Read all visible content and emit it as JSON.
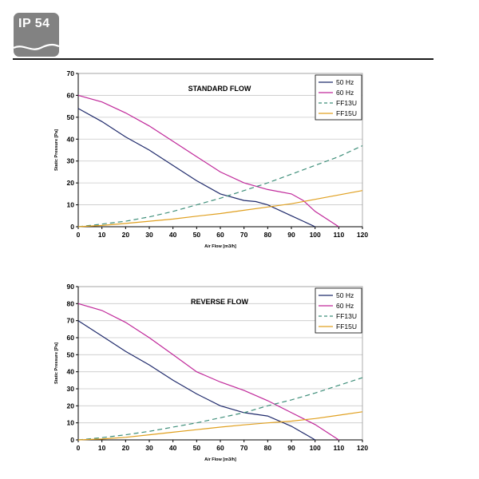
{
  "badge": {
    "text": "IP 54"
  },
  "colors": {
    "hz50": "#1f2a6b",
    "hz60": "#c0289a",
    "ff13u": "#3f8f7a",
    "ff15u": "#e0a020",
    "badge": "#828282"
  },
  "chart_data": [
    {
      "type": "line",
      "title": "STANDARD FLOW",
      "xlabel": "Air Flow [m3/h]",
      "ylabel": "Static Pressure [Pa]",
      "xlim": [
        0,
        120
      ],
      "ylim": [
        0,
        70
      ],
      "xticks": [
        0,
        10,
        20,
        30,
        40,
        50,
        60,
        70,
        80,
        90,
        100,
        110,
        120
      ],
      "yticks": [
        0,
        10,
        20,
        30,
        40,
        50,
        60,
        70
      ],
      "grid": "horizontal",
      "legend": "top-right",
      "series": [
        {
          "name": "50 Hz",
          "color": "#1f2a6b",
          "dash": "solid",
          "x": [
            0,
            10,
            20,
            30,
            40,
            50,
            60,
            70,
            75,
            80,
            90,
            100
          ],
          "y": [
            54,
            48,
            41,
            35,
            28,
            21,
            15,
            12,
            11.5,
            10,
            5,
            0
          ]
        },
        {
          "name": "60 Hz",
          "color": "#c0289a",
          "dash": "solid",
          "x": [
            0,
            10,
            20,
            30,
            40,
            50,
            60,
            70,
            80,
            90,
            95,
            100,
            110
          ],
          "y": [
            60,
            57,
            52,
            46,
            39,
            32,
            25,
            20,
            17,
            15,
            12,
            7,
            0
          ]
        },
        {
          "name": "FF13U",
          "color": "#3f8f7a",
          "dash": "dashed",
          "x": [
            0,
            10,
            20,
            30,
            40,
            50,
            60,
            70,
            80,
            90,
            100,
            110,
            120
          ],
          "y": [
            0,
            1.2,
            2.5,
            4.5,
            7,
            10,
            13,
            16.5,
            20,
            24,
            28,
            32,
            37
          ]
        },
        {
          "name": "FF15U",
          "color": "#e0a020",
          "dash": "solid",
          "x": [
            0,
            10,
            20,
            30,
            40,
            50,
            60,
            70,
            80,
            90,
            100,
            110,
            120
          ],
          "y": [
            0,
            0.6,
            1.5,
            2.5,
            3.5,
            4.8,
            6,
            7.5,
            9,
            10.5,
            12.5,
            14.5,
            16.5
          ]
        }
      ]
    },
    {
      "type": "line",
      "title": "REVERSE FLOW",
      "xlabel": "Air Flow [m3/h]",
      "ylabel": "Static Pressure [Pa]",
      "xlim": [
        0,
        120
      ],
      "ylim": [
        0,
        90
      ],
      "xticks": [
        0,
        10,
        20,
        30,
        40,
        50,
        60,
        70,
        80,
        90,
        100,
        110,
        120
      ],
      "yticks": [
        0,
        10,
        20,
        30,
        40,
        50,
        60,
        70,
        80,
        90
      ],
      "grid": "horizontal",
      "legend": "top-right",
      "series": [
        {
          "name": "50 Hz",
          "color": "#1f2a6b",
          "dash": "solid",
          "x": [
            0,
            10,
            20,
            30,
            40,
            50,
            60,
            70,
            80,
            90,
            100
          ],
          "y": [
            70,
            61,
            52,
            44,
            35,
            27,
            20,
            16,
            14,
            8,
            0
          ]
        },
        {
          "name": "60 Hz",
          "color": "#c0289a",
          "dash": "solid",
          "x": [
            0,
            10,
            20,
            30,
            40,
            50,
            60,
            70,
            80,
            90,
            100,
            110
          ],
          "y": [
            80,
            76,
            69,
            60,
            50,
            40,
            34,
            29,
            23,
            16,
            9,
            0
          ]
        },
        {
          "name": "FF13U",
          "color": "#3f8f7a",
          "dash": "dashed",
          "x": [
            0,
            10,
            20,
            30,
            40,
            50,
            60,
            70,
            80,
            90,
            100,
            110,
            120
          ],
          "y": [
            0,
            1.3,
            3,
            5,
            7.5,
            10,
            13,
            16,
            20,
            23.5,
            27.5,
            32,
            36.5
          ]
        },
        {
          "name": "FF15U",
          "color": "#e0a020",
          "dash": "solid",
          "x": [
            0,
            10,
            20,
            30,
            40,
            50,
            60,
            70,
            80,
            90,
            100,
            110,
            120
          ],
          "y": [
            0,
            0.5,
            1.5,
            3,
            4.5,
            6,
            7.5,
            8.8,
            10,
            11,
            12.5,
            14.5,
            16.5
          ]
        }
      ]
    }
  ]
}
